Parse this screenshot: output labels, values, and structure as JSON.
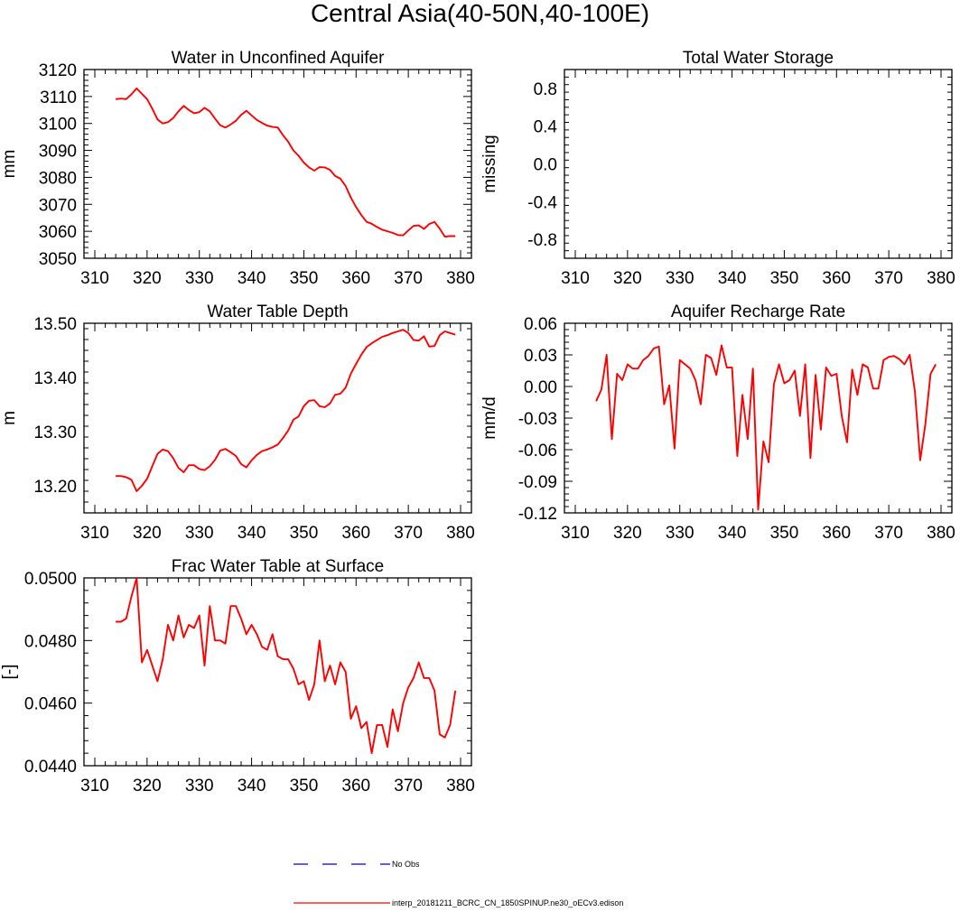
{
  "page": {
    "title": "Central Asia(40-50N,40-100E)"
  },
  "legend": {
    "items": [
      {
        "label": "No Obs",
        "color": "#0000cc",
        "style": "dashed"
      },
      {
        "label": "interp_20181211_BCRC_CN_1850SPINUP.ne30_oECv3.edison",
        "color": "#ff0000",
        "style": "solid"
      }
    ]
  },
  "chart_data": [
    {
      "type": "line",
      "title": "Water in Unconfined Aquifer",
      "ylabel": "mm",
      "xlim": [
        310,
        380
      ],
      "ylim": [
        3050,
        3120
      ],
      "xticks": [
        310,
        320,
        330,
        340,
        350,
        360,
        370,
        380
      ],
      "yticks": [
        3050,
        3060,
        3070,
        3080,
        3090,
        3100,
        3110,
        3120
      ],
      "ytick_labels": [
        "3050",
        "3060",
        "3070",
        "3080",
        "3090",
        "3100",
        "3110",
        "3120"
      ],
      "series": [
        {
          "color": "#ff0000",
          "x": [
            314,
            315,
            316,
            317,
            318,
            319,
            320,
            321,
            322,
            323,
            324,
            325,
            326,
            327,
            328,
            329,
            330,
            331,
            332,
            333,
            334,
            335,
            336,
            337,
            338,
            339,
            340,
            341,
            342,
            343,
            344,
            345,
            346,
            347,
            348,
            349,
            350,
            351,
            352,
            353,
            354,
            355,
            356,
            357,
            358,
            359,
            360,
            361,
            362,
            363,
            364,
            365,
            366,
            367,
            368,
            369,
            370,
            371,
            372,
            373,
            374,
            375,
            376,
            377,
            378,
            379
          ],
          "y": [
            3109,
            3109.2,
            3109,
            3110.8,
            3113,
            3111,
            3109,
            3105.5,
            3101.5,
            3100,
            3100.5,
            3102,
            3104.5,
            3106.5,
            3105,
            3103.8,
            3104.2,
            3105.8,
            3104.5,
            3101.8,
            3099.3,
            3098.5,
            3099.6,
            3101,
            3103.2,
            3104.7,
            3103,
            3101.3,
            3100.2,
            3099.2,
            3098.7,
            3098.5,
            3095.7,
            3093.2,
            3090,
            3088,
            3085.5,
            3083.7,
            3082.5,
            3083.8,
            3083.7,
            3082.8,
            3080.5,
            3079.5,
            3076.8,
            3072.5,
            3069,
            3066,
            3063.5,
            3062.8,
            3061.6,
            3060.6,
            3060,
            3059.4,
            3058.6,
            3058.5,
            3060.3,
            3062,
            3062.2,
            3060.9,
            3062.7,
            3063.5,
            3061,
            3058,
            3058.2,
            3058.2
          ]
        }
      ]
    },
    {
      "type": "line",
      "title": "Total Water Storage",
      "ylabel": "missing",
      "xlim": [
        310,
        380
      ],
      "ylim": [
        -1,
        1
      ],
      "xticks": [
        310,
        320,
        330,
        340,
        350,
        360,
        370,
        380
      ],
      "yticks": [
        -0.8,
        -0.4,
        0.0,
        0.4,
        0.8
      ],
      "ytick_labels": [
        "-0.8",
        "-0.4",
        "0.0",
        "0.4",
        "0.8"
      ],
      "series": []
    },
    {
      "type": "line",
      "title": "Water Table Depth",
      "ylabel": "m",
      "xlim": [
        310,
        380
      ],
      "ylim": [
        13.15,
        13.5
      ],
      "xticks": [
        310,
        320,
        330,
        340,
        350,
        360,
        370,
        380
      ],
      "yticks": [
        13.2,
        13.3,
        13.4,
        13.5
      ],
      "ytick_labels": [
        "13.20",
        "13.30",
        "13.40",
        "13.50"
      ],
      "series": [
        {
          "color": "#ff0000",
          "x": [
            314,
            315,
            316,
            317,
            318,
            319,
            320,
            321,
            322,
            323,
            324,
            325,
            326,
            327,
            328,
            329,
            330,
            331,
            332,
            333,
            334,
            335,
            336,
            337,
            338,
            339,
            340,
            341,
            342,
            343,
            344,
            345,
            346,
            347,
            348,
            349,
            350,
            351,
            352,
            353,
            354,
            355,
            356,
            357,
            358,
            359,
            360,
            361,
            362,
            363,
            364,
            365,
            366,
            367,
            368,
            369,
            370,
            371,
            372,
            373,
            374,
            375,
            376,
            377,
            378,
            379
          ],
          "y": [
            13.218,
            13.218,
            13.216,
            13.211,
            13.19,
            13.2,
            13.213,
            13.236,
            13.259,
            13.267,
            13.264,
            13.251,
            13.233,
            13.225,
            13.238,
            13.238,
            13.231,
            13.229,
            13.236,
            13.248,
            13.265,
            13.268,
            13.262,
            13.255,
            13.24,
            13.234,
            13.247,
            13.257,
            13.264,
            13.267,
            13.271,
            13.276,
            13.288,
            13.302,
            13.322,
            13.328,
            13.347,
            13.357,
            13.358,
            13.347,
            13.345,
            13.352,
            13.368,
            13.37,
            13.381,
            13.407,
            13.425,
            13.442,
            13.456,
            13.463,
            13.469,
            13.475,
            13.478,
            13.482,
            13.485,
            13.488,
            13.482,
            13.469,
            13.468,
            13.476,
            13.457,
            13.458,
            13.478,
            13.485,
            13.482,
            13.479
          ]
        }
      ]
    },
    {
      "type": "line",
      "title": "Aquifer Recharge Rate",
      "ylabel": "mm/d",
      "xlim": [
        310,
        380
      ],
      "ylim": [
        -0.12,
        0.06
      ],
      "xticks": [
        310,
        320,
        330,
        340,
        350,
        360,
        370,
        380
      ],
      "yticks": [
        -0.12,
        -0.09,
        -0.06,
        -0.03,
        0.0,
        0.03,
        0.06
      ],
      "ytick_labels": [
        "-0.12",
        "-0.09",
        "-0.06",
        "-0.03",
        "0.00",
        "0.03",
        "0.06"
      ],
      "series": [
        {
          "color": "#ff0000",
          "x": [
            314,
            315,
            316,
            317,
            318,
            319,
            320,
            321,
            322,
            323,
            324,
            325,
            326,
            327,
            328,
            329,
            330,
            331,
            332,
            333,
            334,
            335,
            336,
            337,
            338,
            339,
            340,
            341,
            342,
            343,
            344,
            345,
            346,
            347,
            348,
            349,
            350,
            351,
            352,
            353,
            354,
            355,
            356,
            357,
            358,
            359,
            360,
            361,
            362,
            363,
            364,
            365,
            366,
            367,
            368,
            369,
            370,
            371,
            372,
            373,
            374,
            375,
            376,
            377,
            378,
            379
          ],
          "y": [
            -0.014,
            -0.003,
            0.03,
            -0.05,
            0.012,
            0.006,
            0.021,
            0.017,
            0.017,
            0.025,
            0.029,
            0.036,
            0.038,
            -0.017,
            0.001,
            -0.059,
            0.025,
            0.021,
            0.017,
            0.006,
            -0.017,
            0.03,
            0.027,
            0.011,
            0.039,
            0.018,
            0.018,
            -0.066,
            -0.008,
            -0.05,
            0.017,
            -0.117,
            -0.052,
            -0.072,
            0.002,
            0.021,
            0.003,
            0.006,
            0.015,
            -0.028,
            0.021,
            -0.068,
            0.011,
            -0.041,
            0.018,
            0.01,
            0.012,
            -0.028,
            -0.053,
            0.016,
            -0.008,
            0.021,
            0.018,
            -0.002,
            -0.002,
            0.025,
            0.028,
            0.029,
            0.026,
            0.021,
            0.03,
            -0.005,
            -0.07,
            -0.036,
            0.012,
            0.021
          ]
        }
      ]
    },
    {
      "type": "line",
      "title": "Frac Water Table at Surface",
      "ylabel": "[-]",
      "xlim": [
        310,
        380
      ],
      "ylim": [
        0.044,
        0.05
      ],
      "xticks": [
        310,
        320,
        330,
        340,
        350,
        360,
        370,
        380
      ],
      "yticks": [
        0.044,
        0.046,
        0.048,
        0.05
      ],
      "ytick_labels": [
        "0.0440",
        "0.0460",
        "0.0480",
        "0.0500"
      ],
      "series": [
        {
          "color": "#ff0000",
          "x": [
            314,
            315,
            316,
            317,
            318,
            319,
            320,
            321,
            322,
            323,
            324,
            325,
            326,
            327,
            328,
            329,
            330,
            331,
            332,
            333,
            334,
            335,
            336,
            337,
            338,
            339,
            340,
            341,
            342,
            343,
            344,
            345,
            346,
            347,
            348,
            349,
            350,
            351,
            352,
            353,
            354,
            355,
            356,
            357,
            358,
            359,
            360,
            361,
            362,
            363,
            364,
            365,
            366,
            367,
            368,
            369,
            370,
            371,
            372,
            373,
            374,
            375,
            376,
            377,
            378,
            379
          ],
          "y": [
            0.0486,
            0.0486,
            0.0487,
            0.0494,
            0.05,
            0.0473,
            0.0477,
            0.0472,
            0.0467,
            0.0474,
            0.0485,
            0.048,
            0.0488,
            0.0481,
            0.0485,
            0.0484,
            0.0488,
            0.0472,
            0.0491,
            0.048,
            0.048,
            0.0479,
            0.0491,
            0.0491,
            0.0487,
            0.0482,
            0.0485,
            0.0482,
            0.0478,
            0.0477,
            0.0482,
            0.0475,
            0.0474,
            0.0474,
            0.0471,
            0.0466,
            0.0467,
            0.0461,
            0.0466,
            0.048,
            0.0467,
            0.0472,
            0.0466,
            0.0473,
            0.047,
            0.0455,
            0.0459,
            0.0452,
            0.0454,
            0.0444,
            0.0453,
            0.0453,
            0.0446,
            0.0458,
            0.0451,
            0.046,
            0.0465,
            0.0468,
            0.0473,
            0.0468,
            0.0468,
            0.0464,
            0.045,
            0.0449,
            0.0453,
            0.0464
          ]
        }
      ]
    }
  ]
}
